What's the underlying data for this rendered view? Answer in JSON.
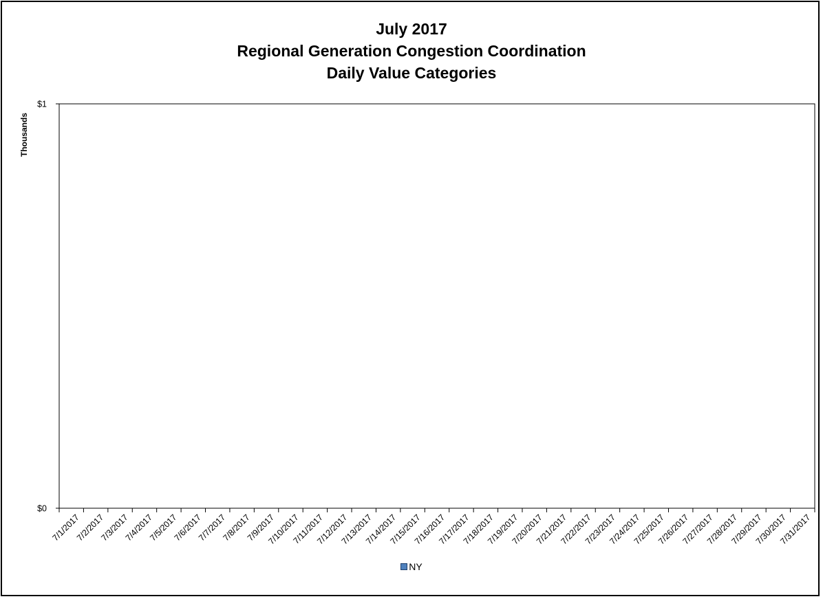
{
  "chart_data": {
    "type": "bar",
    "title_lines": [
      "July 2017",
      "Regional Generation Congestion Coordination",
      "Daily Value Categories"
    ],
    "xlabel": "",
    "ylabel": "Thousands",
    "categories": [
      "7/1/2017",
      "7/2/2017",
      "7/3/2017",
      "7/4/2017",
      "7/5/2017",
      "7/6/2017",
      "7/7/2017",
      "7/8/2017",
      "7/9/2017",
      "7/10/2017",
      "7/11/2017",
      "7/12/2017",
      "7/13/2017",
      "7/14/2017",
      "7/15/2017",
      "7/16/2017",
      "7/17/2017",
      "7/18/2017",
      "7/19/2017",
      "7/20/2017",
      "7/21/2017",
      "7/22/2017",
      "7/23/2017",
      "7/24/2017",
      "7/25/2017",
      "7/26/2017",
      "7/27/2017",
      "7/28/2017",
      "7/29/2017",
      "7/30/2017",
      "7/31/2017"
    ],
    "series": [
      {
        "name": "NY",
        "color": "#4f81bd",
        "values": [
          0,
          0,
          0,
          0,
          0,
          0,
          0,
          0,
          0,
          0,
          0,
          0,
          0,
          0,
          0,
          0,
          0,
          0,
          0,
          0,
          0,
          0,
          0,
          0,
          0,
          0,
          0,
          0,
          0,
          0,
          0
        ]
      }
    ],
    "ylim": [
      0,
      1
    ],
    "y_ticks": [
      {
        "value": 0,
        "label": "$0"
      },
      {
        "value": 1,
        "label": "$1"
      }
    ],
    "grid": false,
    "legend_position": "bottom"
  }
}
